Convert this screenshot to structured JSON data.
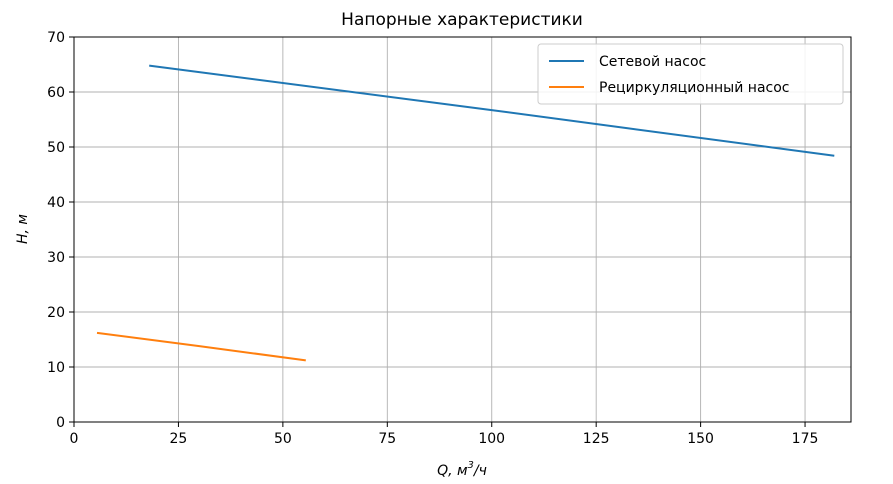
{
  "chart_data": {
    "type": "line",
    "title": "Напорные характеристики",
    "xlabel": "Q, м",
    "xlabel_sup": "3",
    "xlabel_tail": "/ч",
    "ylabel": "H, м",
    "xlim": [
      0,
      186
    ],
    "ylim": [
      0,
      70
    ],
    "xticks": [
      0,
      25,
      50,
      75,
      100,
      125,
      150,
      175
    ],
    "yticks": [
      0,
      10,
      20,
      30,
      40,
      50,
      60,
      70
    ],
    "grid": true,
    "legend_position": "top-right",
    "series": [
      {
        "name": "Сетевой насос",
        "color": "#1f77b4",
        "points": [
          [
            18,
            64.8
          ],
          [
            100,
            56.7
          ],
          [
            182,
            48.4
          ]
        ]
      },
      {
        "name": "Рециркуляционный насос",
        "color": "#ff7f0e",
        "points": [
          [
            5.5,
            16.2
          ],
          [
            30,
            13.8
          ],
          [
            55.5,
            11.2
          ]
        ]
      }
    ]
  }
}
